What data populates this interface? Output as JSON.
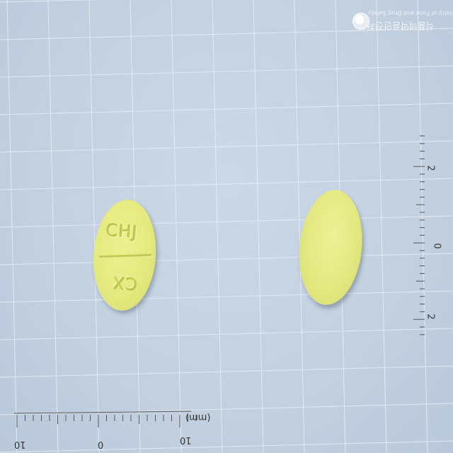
{
  "photo": {
    "subject": "Two round yellow tablets on a grid measurement mat",
    "colors": {
      "background": "#c5d3e3",
      "tablet": "#e4ea7e",
      "grid": "#eef2f8"
    }
  },
  "tablet_front": {
    "imprint_top": "CHJ",
    "imprint_bottom": "CX"
  },
  "scale": {
    "unit": "(mm)",
    "labels": [
      "10",
      "0",
      "10"
    ],
    "side_labels": [
      "2",
      "0",
      "2"
    ]
  },
  "logo": {
    "icon": "ministry-emblem-icon",
    "english": "Ministry of Food and Drug Safety",
    "korean": "식품의약품안전처"
  }
}
